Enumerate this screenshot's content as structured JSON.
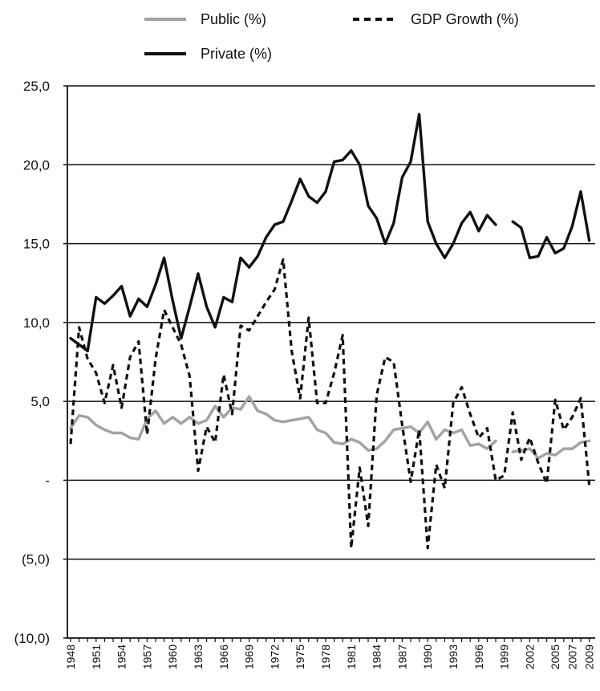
{
  "chart_data": {
    "type": "line",
    "title": "",
    "xlabel": "",
    "ylabel": "",
    "ylim": [
      -10,
      25
    ],
    "yticks": [
      {
        "value": 25,
        "label": "25,0"
      },
      {
        "value": 20,
        "label": "20,0"
      },
      {
        "value": 15,
        "label": "15,0"
      },
      {
        "value": 10,
        "label": "10,0"
      },
      {
        "value": 5,
        "label": "5,0"
      },
      {
        "value": 0,
        "label": "-"
      },
      {
        "value": -5,
        "label": "(5,0)"
      },
      {
        "value": -10,
        "label": "(10,0)"
      }
    ],
    "xticks": [
      "1948",
      "1951",
      "1954",
      "1957",
      "1960",
      "1963",
      "1966",
      "1969",
      "1972",
      "1975",
      "1978",
      "1981",
      "1984",
      "1987",
      "1990",
      "1993",
      "1996",
      "1999",
      "2002",
      "2005",
      "2007",
      "2009"
    ],
    "grid": "horizontal",
    "legend_position": "top",
    "x": [
      1948,
      1949,
      1950,
      1951,
      1952,
      1953,
      1954,
      1955,
      1956,
      1957,
      1958,
      1959,
      1960,
      1961,
      1962,
      1963,
      1964,
      1965,
      1966,
      1967,
      1968,
      1969,
      1970,
      1971,
      1972,
      1973,
      1974,
      1975,
      1976,
      1977,
      1978,
      1979,
      1980,
      1981,
      1982,
      1983,
      1984,
      1985,
      1986,
      1987,
      1988,
      1989,
      1990,
      1991,
      1992,
      1993,
      1994,
      1995,
      1996,
      1997,
      1998,
      1999,
      2000,
      2001,
      2002,
      2003,
      2004,
      2005,
      2006,
      2007,
      2008,
      2009
    ],
    "series": [
      {
        "name": "Public (%)",
        "color": "#a3a3a3",
        "style": "solid",
        "values": [
          3.3,
          4.1,
          4.0,
          3.5,
          3.2,
          3.0,
          3.0,
          2.7,
          2.6,
          3.9,
          4.4,
          3.6,
          4.0,
          3.6,
          4.0,
          3.6,
          3.8,
          4.7,
          4.0,
          4.6,
          4.5,
          5.3,
          4.4,
          4.2,
          3.8,
          3.7,
          3.8,
          3.9,
          4.0,
          3.2,
          3.0,
          2.4,
          2.3,
          2.6,
          2.4,
          1.9,
          2.0,
          2.5,
          3.2,
          3.3,
          3.4,
          3.0,
          3.7,
          2.6,
          3.2,
          3.0,
          3.2,
          2.2,
          2.3,
          2.0,
          2.5,
          null,
          1.8,
          1.9,
          2.0,
          1.4,
          1.7,
          1.6,
          2.0,
          2.0,
          2.4,
          2.5
        ]
      },
      {
        "name": "GDP Growth (%)",
        "color": "#111111",
        "style": "dashed",
        "values": [
          2.3,
          9.7,
          7.7,
          6.8,
          4.9,
          7.3,
          4.6,
          7.8,
          8.8,
          2.9,
          7.7,
          10.8,
          9.7,
          8.6,
          6.6,
          0.6,
          3.4,
          2.4,
          6.7,
          4.2,
          9.8,
          9.5,
          10.4,
          11.3,
          12.1,
          14.0,
          8.2,
          5.2,
          10.3,
          4.9,
          4.9,
          6.8,
          9.2,
          -4.3,
          0.8,
          -2.9,
          5.4,
          7.8,
          7.5,
          3.5,
          -0.1,
          3.2,
          -4.3,
          1.0,
          -0.5,
          4.9,
          5.9,
          4.2,
          2.7,
          3.3,
          0.0,
          0.3,
          4.3,
          1.3,
          2.7,
          1.1,
          -0.2,
          5.1,
          3.2,
          4.0,
          5.2,
          -0.3
        ]
      },
      {
        "name": "Private (%)",
        "color": "#111111",
        "style": "solid",
        "values": [
          9.0,
          8.6,
          8.2,
          11.6,
          11.2,
          11.7,
          12.3,
          10.4,
          11.5,
          11.0,
          12.4,
          14.1,
          11.4,
          9.0,
          11.0,
          13.1,
          11.0,
          9.7,
          11.6,
          11.3,
          14.1,
          13.5,
          14.2,
          15.4,
          16.2,
          16.4,
          17.7,
          19.1,
          18.0,
          17.6,
          18.3,
          20.2,
          20.3,
          20.9,
          20.0,
          17.4,
          16.6,
          15.0,
          16.3,
          19.2,
          20.2,
          23.2,
          16.4,
          15.0,
          14.1,
          15.0,
          16.3,
          17.0,
          15.8,
          16.8,
          16.2,
          null,
          16.4,
          16.0,
          14.1,
          14.2,
          15.4,
          14.4,
          14.7,
          16.1,
          18.3,
          15.2
        ]
      }
    ]
  }
}
